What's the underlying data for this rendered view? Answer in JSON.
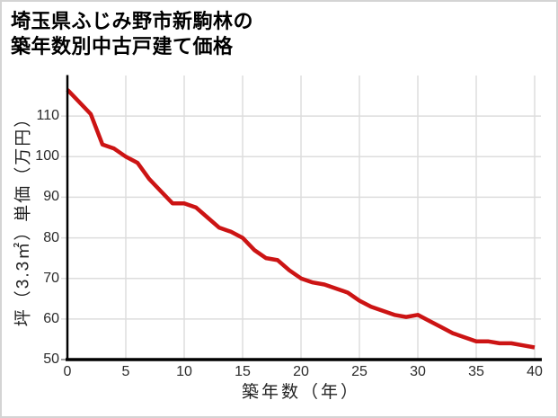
{
  "title": {
    "line1": "埼玉県ふじみ野市新駒林の",
    "line2": "築年数別中古戸建て価格"
  },
  "chart_data": {
    "type": "line",
    "title": "埼玉県ふじみ野市新駒林の築年数別中古戸建て価格",
    "xlabel": "築年数（年）",
    "ylabel": "坪（3.3㎡）単価（万円）",
    "x": [
      0,
      1,
      2,
      3,
      4,
      5,
      6,
      7,
      8,
      9,
      10,
      11,
      12,
      13,
      14,
      15,
      16,
      17,
      18,
      19,
      20,
      21,
      22,
      23,
      24,
      25,
      26,
      27,
      28,
      29,
      30,
      31,
      32,
      33,
      34,
      35,
      36,
      37,
      38,
      39,
      40
    ],
    "values": [
      116.5,
      113.5,
      110.5,
      103,
      102,
      100,
      98.5,
      94.5,
      91.5,
      88.5,
      88.5,
      87.5,
      85,
      82.5,
      81.5,
      80,
      77,
      75,
      74.5,
      72,
      70,
      69,
      68.5,
      67.5,
      66.5,
      64.5,
      63,
      62,
      61,
      60.5,
      61,
      59.5,
      58,
      56.5,
      55.5,
      54.5,
      54.5,
      54,
      54,
      53.5,
      53
    ],
    "xlim": [
      0,
      40
    ],
    "ylim": [
      50,
      120
    ],
    "xticks": [
      0,
      5,
      10,
      15,
      20,
      25,
      30,
      35,
      40
    ],
    "yticks": [
      50,
      60,
      70,
      80,
      90,
      100,
      110
    ],
    "grid": true,
    "legend": false,
    "line_color": "#cc1414",
    "grid_color": "#dddddd",
    "axis_color": "#000000",
    "tick_label_color": "#2b2b2b"
  }
}
